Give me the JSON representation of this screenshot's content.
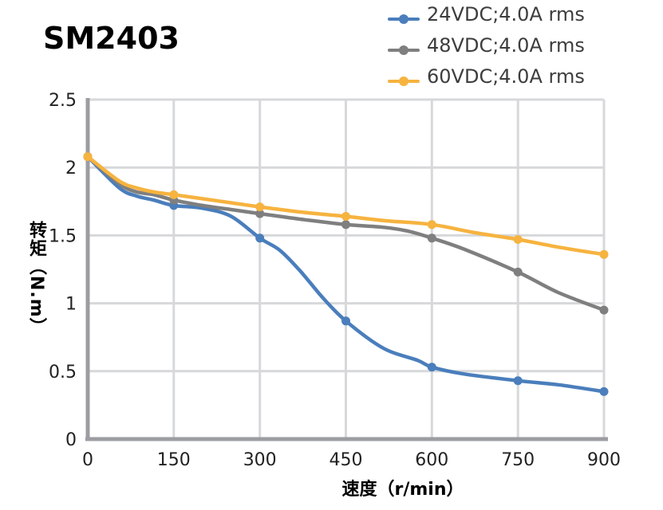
{
  "title": "SM2403",
  "colors": {
    "background": "#ffffff",
    "grid": "#d6d8da",
    "axis": "#9b9da1",
    "tick_text": "#222222",
    "legend_text": "#3d3d3d"
  },
  "chart_data": {
    "type": "line",
    "title": "SM2403",
    "xlabel": "速度（r/min）",
    "ylabel": "转矩（N.m）",
    "xlim": [
      0,
      900
    ],
    "ylim": [
      0,
      2.5
    ],
    "grid": true,
    "legend_position": "top-right",
    "x_ticks": [
      0,
      150,
      300,
      450,
      600,
      750,
      900
    ],
    "y_ticks": [
      0,
      0.5,
      1,
      1.5,
      2,
      2.5
    ],
    "x_tick_labels": [
      "0",
      "150",
      "300",
      "450",
      "600",
      "750",
      "900"
    ],
    "y_tick_labels": [
      "0",
      "0.5",
      "1",
      "1.5",
      "2",
      "2.5"
    ],
    "categories": [
      0,
      150,
      300,
      450,
      600,
      750,
      900
    ],
    "series": [
      {
        "name": "24VDC;4.0A rms",
        "color": "#4a7ebc",
        "values": [
          2.08,
          1.72,
          1.48,
          0.87,
          0.53,
          0.43,
          0.35
        ],
        "curve_points": [
          [
            0,
            2.08
          ],
          [
            55,
            1.85
          ],
          [
            85,
            1.79
          ],
          [
            115,
            1.76
          ],
          [
            150,
            1.72
          ],
          [
            200,
            1.7
          ],
          [
            250,
            1.64
          ],
          [
            300,
            1.48
          ],
          [
            335,
            1.39
          ],
          [
            370,
            1.24
          ],
          [
            410,
            1.04
          ],
          [
            450,
            0.87
          ],
          [
            515,
            0.67
          ],
          [
            575,
            0.58
          ],
          [
            600,
            0.53
          ],
          [
            655,
            0.48
          ],
          [
            750,
            0.43
          ],
          [
            820,
            0.4
          ],
          [
            900,
            0.35
          ]
        ]
      },
      {
        "name": "48VDC;4.0A rms",
        "color": "#7f7f7f",
        "values": [
          2.08,
          1.76,
          1.66,
          1.58,
          1.48,
          1.23,
          0.95
        ],
        "curve_points": [
          [
            0,
            2.08
          ],
          [
            55,
            1.88
          ],
          [
            85,
            1.82
          ],
          [
            115,
            1.8
          ],
          [
            150,
            1.76
          ],
          [
            200,
            1.72
          ],
          [
            250,
            1.69
          ],
          [
            300,
            1.66
          ],
          [
            370,
            1.62
          ],
          [
            450,
            1.58
          ],
          [
            515,
            1.56
          ],
          [
            560,
            1.53
          ],
          [
            600,
            1.48
          ],
          [
            655,
            1.4
          ],
          [
            750,
            1.23
          ],
          [
            820,
            1.08
          ],
          [
            900,
            0.95
          ]
        ]
      },
      {
        "name": "60VDC;4.0A rms",
        "color": "#f6b33f",
        "values": [
          2.08,
          1.8,
          1.71,
          1.64,
          1.58,
          1.47,
          1.36
        ],
        "curve_points": [
          [
            0,
            2.08
          ],
          [
            55,
            1.9
          ],
          [
            85,
            1.85
          ],
          [
            115,
            1.82
          ],
          [
            150,
            1.8
          ],
          [
            200,
            1.77
          ],
          [
            250,
            1.74
          ],
          [
            300,
            1.71
          ],
          [
            375,
            1.67
          ],
          [
            450,
            1.64
          ],
          [
            515,
            1.61
          ],
          [
            600,
            1.58
          ],
          [
            675,
            1.52
          ],
          [
            750,
            1.47
          ],
          [
            825,
            1.41
          ],
          [
            900,
            1.36
          ]
        ]
      }
    ]
  }
}
